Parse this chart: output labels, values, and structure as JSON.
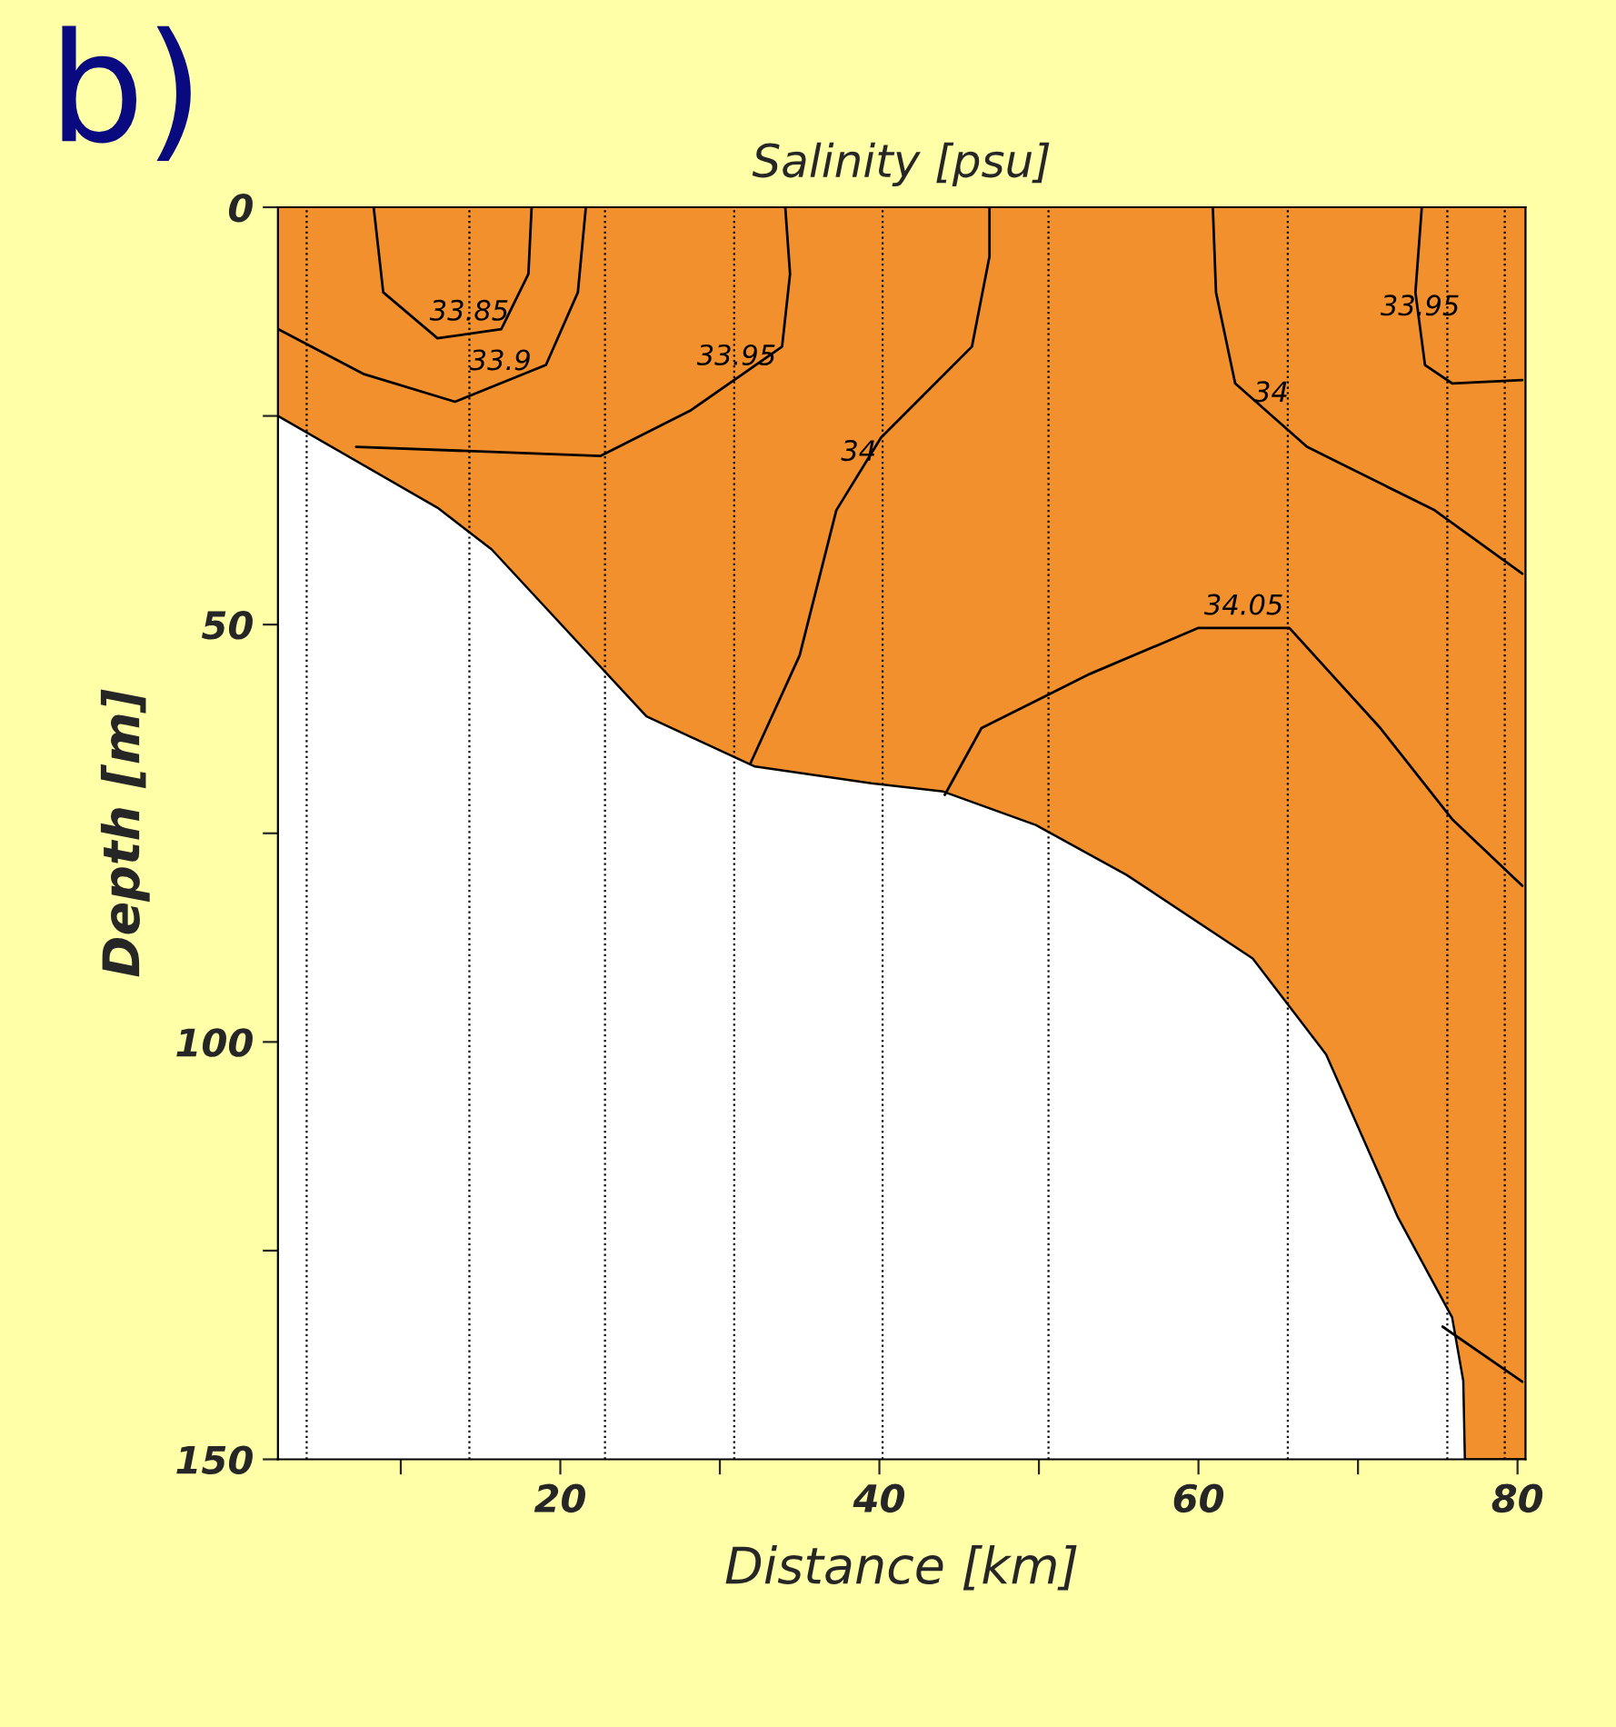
{
  "chart_data": {
    "type": "line",
    "title": "Salinity [psu]",
    "xlabel": "Distance [km]",
    "ylabel": "Depth [m]",
    "annotations": [
      "b)"
    ],
    "xlim": [
      2.3,
      80.5
    ],
    "ylim": [
      150,
      0
    ],
    "xticks": [
      {
        "value": 10,
        "label": null
      },
      20,
      {
        "value": 30,
        "label": null
      },
      40,
      {
        "value": 50,
        "label": null
      },
      60,
      {
        "value": 70,
        "label": null
      },
      80
    ],
    "yticks": [
      0,
      {
        "value": 25,
        "label": null
      },
      50,
      {
        "value": 75,
        "label": null
      },
      100,
      {
        "value": 125,
        "label": null
      },
      150
    ],
    "grid": false,
    "legend": false,
    "marker": "none",
    "line_style": "solid",
    "ref_lines": [
      {
        "axis": "x",
        "value": 4.1,
        "color": "#000000",
        "line_style": "dotted"
      },
      {
        "axis": "x",
        "value": 14.3,
        "color": "#000000",
        "line_style": "dotted"
      },
      {
        "axis": "x",
        "value": 22.8,
        "color": "#000000",
        "line_style": "dotted"
      },
      {
        "axis": "x",
        "value": 30.9,
        "color": "#000000",
        "line_style": "dotted"
      },
      {
        "axis": "x",
        "value": 40.2,
        "color": "#000000",
        "line_style": "dotted"
      },
      {
        "axis": "x",
        "value": 50.6,
        "color": "#000000",
        "line_style": "dotted"
      },
      {
        "axis": "x",
        "value": 65.6,
        "color": "#000000",
        "line_style": "dotted"
      },
      {
        "axis": "x",
        "value": 75.6,
        "color": "#000000",
        "line_style": "dotted"
      },
      {
        "axis": "x",
        "value": 79.2,
        "color": "#000000",
        "line_style": "dotted"
      }
    ],
    "series": [
      {
        "type": "area",
        "color": "#f3902e",
        "x": [
          2.3,
          12.3,
          15.7,
          25.4,
          32.2,
          39.5,
          44,
          49.8,
          55.5,
          63.4,
          68,
          72.5,
          75.9,
          76.6,
          76.7,
          80.5
        ],
        "values": [
          25,
          36,
          41,
          61,
          67,
          69,
          70,
          74,
          80,
          90,
          101.5,
          121,
          133,
          140.6,
          150,
          150
        ]
      },
      {
        "name": "33.85",
        "color": "#000000",
        "x": [
          8.3,
          8.9,
          12.3,
          16.3,
          18.0,
          18.2
        ],
        "values": [
          0,
          10.2,
          15.7,
          14.6,
          8.0,
          0
        ]
      },
      {
        "name": "33.9",
        "color": "#000000",
        "x": [
          2.3,
          7.7,
          13.4,
          19.1,
          21.1,
          21.6
        ],
        "values": [
          14.6,
          20,
          23.3,
          18.9,
          10.2,
          0
        ]
      },
      {
        "name": "33.95",
        "color": "#000000",
        "x": [
          7.2,
          22.5,
          28.2,
          33.9,
          34.4,
          34.1
        ],
        "values": [
          28.7,
          29.8,
          24.3,
          16.7,
          8.0,
          0
        ]
      },
      {
        "name": "33.95",
        "color": "#000000",
        "x": [
          74,
          73.6,
          74.2,
          75.9,
          80.3
        ],
        "values": [
          0,
          10.2,
          18.9,
          21.1,
          20.7
        ]
      },
      {
        "name": "34",
        "color": "#000000",
        "x": [
          31.9,
          35,
          37.3,
          40.1,
          45.8,
          46.9,
          46.9
        ],
        "values": [
          66.7,
          53.7,
          36.3,
          27.6,
          16.7,
          5.9,
          0
        ]
      },
      {
        "name": "34",
        "color": "#000000",
        "x": [
          60.9,
          61.1,
          62.3,
          66.8,
          74.8,
          80.3
        ],
        "values": [
          0,
          10.2,
          21.1,
          28.7,
          36.3,
          43.9
        ]
      },
      {
        "name": "34.05",
        "color": "#000000",
        "x": [
          44.1,
          46.4,
          53.2,
          60,
          65.7,
          71.4,
          75.9,
          80.3
        ],
        "values": [
          70.4,
          62.4,
          55.9,
          50.4,
          50.4,
          62.4,
          73.3,
          81.3
        ]
      },
      {
        "color": "#000000",
        "x": [
          75.3,
          80.3
        ],
        "values": [
          134.1,
          140.7
        ]
      }
    ]
  }
}
